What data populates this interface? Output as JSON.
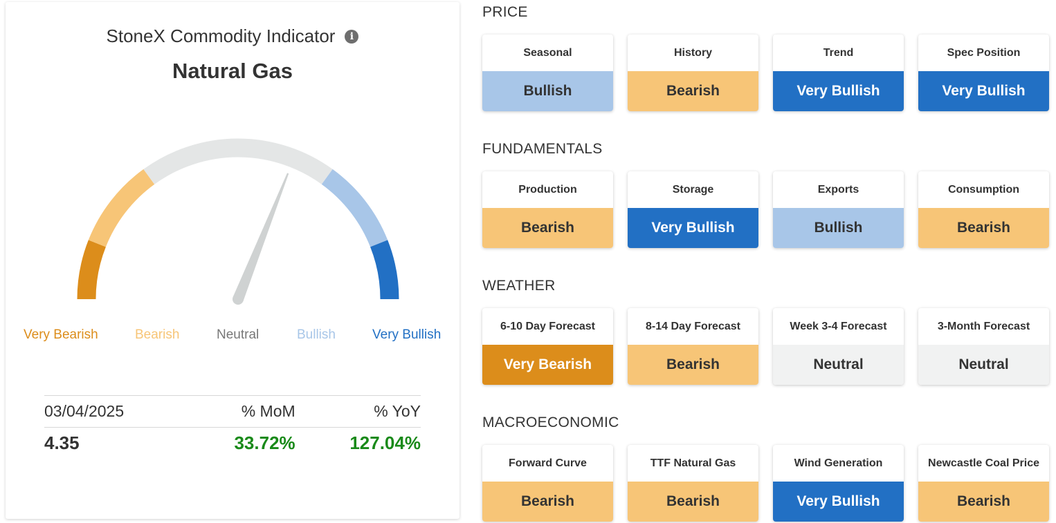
{
  "indicator": {
    "title": "StoneX Commodity Indicator",
    "info_icon": "info-icon",
    "commodity": "Natural Gas",
    "gauge": {
      "scale": [
        "Very Bearish",
        "Bearish",
        "Neutral",
        "Bullish",
        "Very Bullish"
      ],
      "colors": [
        "#dc8d1b",
        "#f7c577",
        "#e4e6e6",
        "#a8c6e8",
        "#2270c4"
      ],
      "needle_value": 0.62
    },
    "stats": {
      "headers": [
        "03/04/2025",
        "% MoM",
        "% YoY"
      ],
      "values": [
        "4.35",
        "33.72%",
        "127.04%"
      ]
    }
  },
  "sections": [
    {
      "title": "PRICE",
      "cards": [
        {
          "name": "Seasonal",
          "value": "Bullish",
          "status": "bull"
        },
        {
          "name": "History",
          "value": "Bearish",
          "status": "bear"
        },
        {
          "name": "Trend",
          "value": "Very Bullish",
          "status": "vbull"
        },
        {
          "name": "Spec Position",
          "value": "Very Bullish",
          "status": "vbull"
        }
      ]
    },
    {
      "title": "FUNDAMENTALS",
      "cards": [
        {
          "name": "Production",
          "value": "Bearish",
          "status": "bear"
        },
        {
          "name": "Storage",
          "value": "Very Bullish",
          "status": "vbull"
        },
        {
          "name": "Exports",
          "value": "Bullish",
          "status": "bull"
        },
        {
          "name": "Consumption",
          "value": "Bearish",
          "status": "bear"
        }
      ]
    },
    {
      "title": "WEATHER",
      "cards": [
        {
          "name": "6-10 Day Forecast",
          "value": "Very Bearish",
          "status": "vbear"
        },
        {
          "name": "8-14 Day Forecast",
          "value": "Bearish",
          "status": "bear"
        },
        {
          "name": "Week 3-4 Forecast",
          "value": "Neutral",
          "status": "neut"
        },
        {
          "name": "3-Month Forecast",
          "value": "Neutral",
          "status": "neut"
        }
      ]
    },
    {
      "title": "MACROECONOMIC",
      "cards": [
        {
          "name": "Forward Curve",
          "value": "Bearish",
          "status": "bear"
        },
        {
          "name": "TTF Natural Gas",
          "value": "Bearish",
          "status": "bear"
        },
        {
          "name": "Wind Generation",
          "value": "Very Bullish",
          "status": "vbull"
        },
        {
          "name": "Newcastle Coal Price",
          "value": "Bearish",
          "status": "bear"
        }
      ]
    }
  ]
}
